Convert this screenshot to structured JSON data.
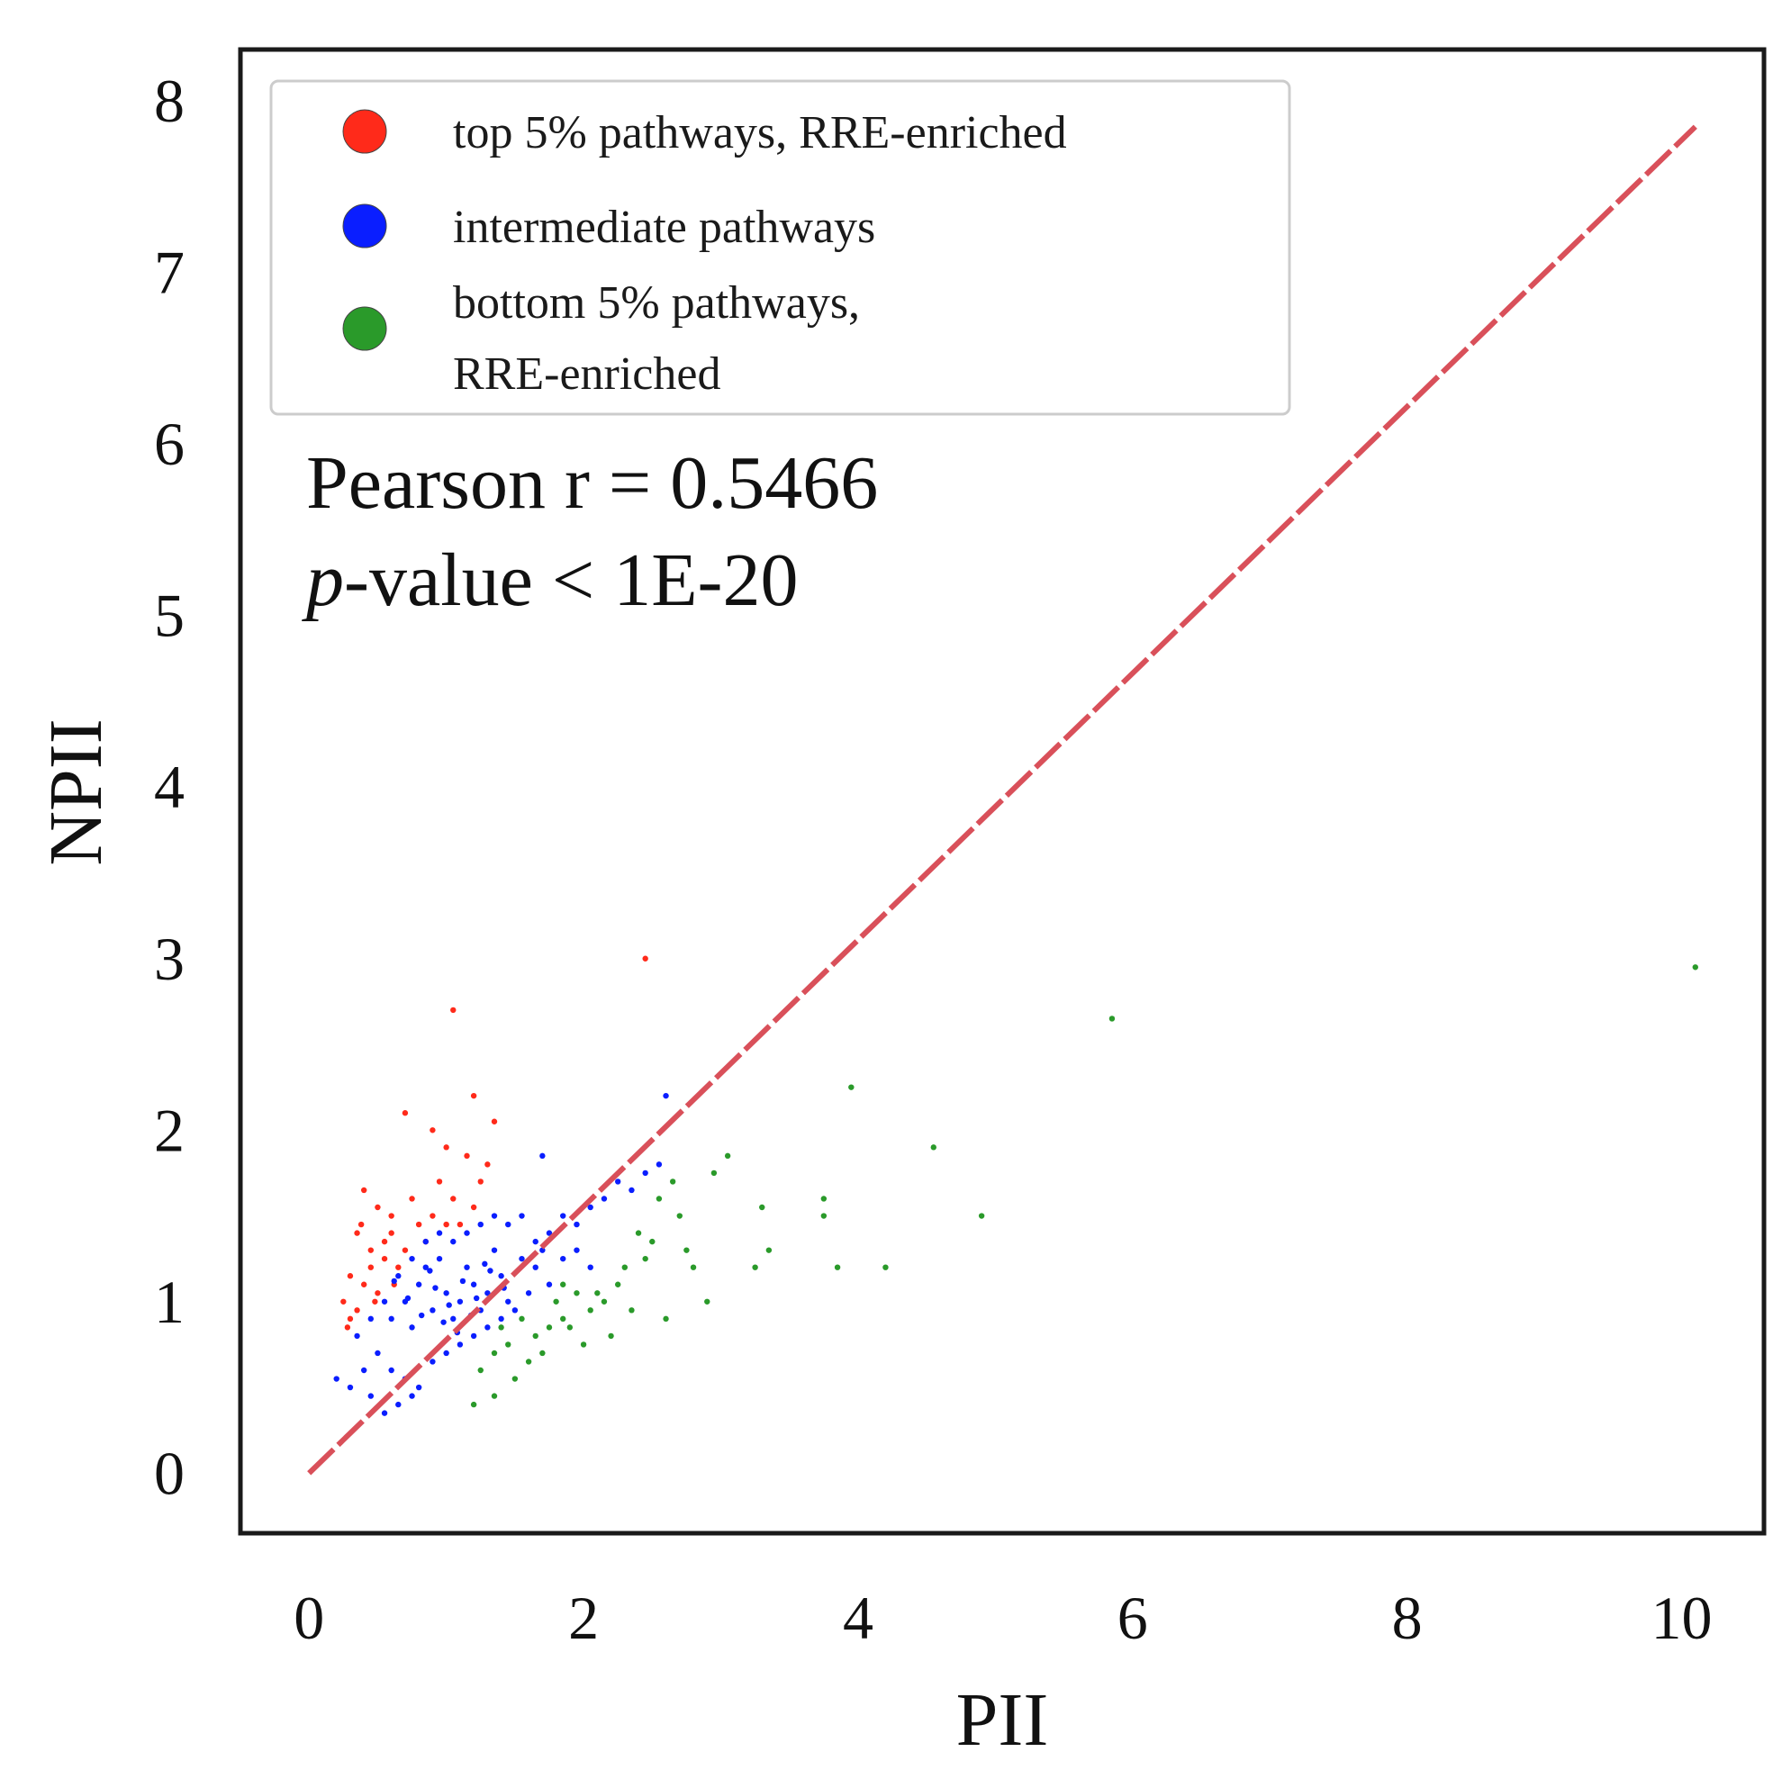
{
  "chart_data": {
    "type": "scatter",
    "title": "",
    "xlabel": "PII",
    "ylabel": "NPII",
    "xlim": [
      -0.5,
      10.6
    ],
    "ylim": [
      -0.35,
      8.3
    ],
    "xticks": [
      "0",
      "2",
      "4",
      "6",
      "8",
      "10"
    ],
    "yticks": [
      "0",
      "1",
      "2",
      "3",
      "4",
      "5",
      "6",
      "7",
      "8"
    ],
    "grid": false,
    "legend_position": "top-left",
    "legend": [
      {
        "label_lines": [
          "top 5% pathways, RRE-enriched"
        ],
        "color": "#ff2a1a"
      },
      {
        "label_lines": [
          "intermediate pathways"
        ],
        "color": "#0a1eff"
      },
      {
        "label_lines": [
          "bottom 5% pathways,",
          "RRE-enriched"
        ],
        "color": "#2a9a2a"
      }
    ],
    "annotation": {
      "pearson": "Pearson r = 0.5466",
      "pvalue_italic": "p",
      "pvalue_rest": "-value < 1E-20"
    },
    "reference_line": {
      "name": "identity line",
      "x": [
        0,
        10.1
      ],
      "y": [
        0,
        7.85
      ],
      "color": "#d9505a",
      "style": "dashed"
    },
    "series": [
      {
        "name": "top 5% pathways, RRE-enriched",
        "color": "#ff2a1a",
        "points": [
          [
            2.45,
            3.0
          ],
          [
            1.05,
            2.7
          ],
          [
            1.2,
            2.2
          ],
          [
            0.7,
            2.1
          ],
          [
            1.35,
            2.05
          ],
          [
            0.9,
            2.0
          ],
          [
            1.0,
            1.9
          ],
          [
            1.15,
            1.85
          ],
          [
            1.3,
            1.8
          ],
          [
            0.4,
            1.65
          ],
          [
            0.5,
            1.55
          ],
          [
            0.6,
            1.5
          ],
          [
            0.75,
            1.6
          ],
          [
            0.95,
            1.7
          ],
          [
            1.05,
            1.6
          ],
          [
            1.2,
            1.55
          ],
          [
            0.35,
            1.4
          ],
          [
            0.45,
            1.3
          ],
          [
            0.55,
            1.25
          ],
          [
            0.3,
            1.15
          ],
          [
            0.4,
            1.1
          ],
          [
            0.5,
            1.05
          ],
          [
            0.25,
            1.0
          ],
          [
            0.35,
            0.95
          ],
          [
            0.6,
            1.4
          ],
          [
            0.7,
            1.3
          ],
          [
            0.8,
            1.45
          ],
          [
            0.9,
            1.5
          ],
          [
            1.1,
            1.45
          ],
          [
            0.45,
            1.2
          ],
          [
            0.3,
            0.9
          ],
          [
            0.55,
            1.35
          ],
          [
            0.65,
            1.2
          ],
          [
            0.85,
            1.35
          ],
          [
            1.0,
            1.45
          ],
          [
            0.28,
            0.85
          ],
          [
            0.38,
            1.45
          ],
          [
            0.48,
            1.0
          ],
          [
            0.62,
            1.1
          ],
          [
            1.25,
            1.7
          ]
        ]
      },
      {
        "name": "intermediate pathways",
        "color": "#0a1eff",
        "points": [
          [
            0.6,
            0.9
          ],
          [
            0.7,
            1.0
          ],
          [
            0.8,
            1.1
          ],
          [
            0.9,
            0.95
          ],
          [
            1.0,
            1.05
          ],
          [
            1.1,
            1.0
          ],
          [
            1.2,
            1.1
          ],
          [
            1.3,
            1.05
          ],
          [
            1.4,
            1.15
          ],
          [
            0.75,
            0.85
          ],
          [
            0.85,
            1.2
          ],
          [
            0.95,
            1.25
          ],
          [
            1.05,
            0.9
          ],
          [
            1.15,
            1.2
          ],
          [
            1.25,
            0.95
          ],
          [
            1.35,
            1.3
          ],
          [
            1.45,
            1.0
          ],
          [
            1.55,
            1.25
          ],
          [
            1.65,
            1.35
          ],
          [
            1.75,
            1.4
          ],
          [
            1.85,
            1.5
          ],
          [
            1.95,
            1.45
          ],
          [
            2.05,
            1.55
          ],
          [
            2.15,
            1.6
          ],
          [
            2.25,
            1.7
          ],
          [
            2.35,
            1.65
          ],
          [
            2.45,
            1.75
          ],
          [
            2.55,
            1.8
          ],
          [
            1.7,
            1.85
          ],
          [
            2.6,
            2.2
          ],
          [
            0.5,
            0.7
          ],
          [
            0.4,
            0.6
          ],
          [
            0.3,
            0.5
          ],
          [
            0.2,
            0.55
          ],
          [
            0.35,
            0.8
          ],
          [
            0.45,
            0.9
          ],
          [
            0.55,
            1.0
          ],
          [
            0.65,
            1.15
          ],
          [
            0.75,
            1.25
          ],
          [
            0.85,
            1.35
          ],
          [
            0.95,
            1.4
          ],
          [
            1.05,
            1.35
          ],
          [
            1.15,
            1.4
          ],
          [
            1.25,
            1.45
          ],
          [
            1.35,
            1.5
          ],
          [
            1.45,
            1.45
          ],
          [
            1.55,
            1.5
          ],
          [
            1.65,
            1.2
          ],
          [
            1.75,
            1.1
          ],
          [
            1.85,
            1.25
          ],
          [
            1.95,
            1.3
          ],
          [
            2.05,
            1.2
          ],
          [
            0.6,
            0.6
          ],
          [
            0.7,
            0.55
          ],
          [
            0.8,
            0.5
          ],
          [
            0.9,
            0.65
          ],
          [
            1.0,
            0.7
          ],
          [
            1.1,
            0.75
          ],
          [
            1.2,
            0.8
          ],
          [
            1.3,
            0.85
          ],
          [
            1.4,
            0.9
          ],
          [
            1.5,
            0.95
          ],
          [
            0.65,
            0.4
          ],
          [
            0.75,
            0.45
          ],
          [
            0.55,
            0.35
          ],
          [
            0.45,
            0.45
          ],
          [
            1.6,
            1.05
          ],
          [
            1.7,
            1.3
          ],
          [
            0.92,
            1.08
          ],
          [
            1.02,
            0.98
          ],
          [
            1.12,
            1.12
          ],
          [
            1.22,
            1.02
          ],
          [
            0.82,
            0.92
          ],
          [
            0.72,
            1.02
          ],
          [
            1.32,
            1.18
          ],
          [
            1.42,
            1.08
          ],
          [
            0.62,
            1.12
          ],
          [
            1.08,
            0.82
          ],
          [
            0.98,
            0.88
          ],
          [
            1.18,
            0.92
          ],
          [
            0.88,
            1.18
          ],
          [
            1.28,
            1.22
          ]
        ]
      },
      {
        "name": "bottom 5% pathways, RRE-enriched",
        "color": "#2a9a2a",
        "points": [
          [
            10.1,
            2.95
          ],
          [
            5.85,
            2.65
          ],
          [
            3.95,
            2.25
          ],
          [
            4.55,
            1.9
          ],
          [
            3.05,
            1.85
          ],
          [
            2.95,
            1.75
          ],
          [
            3.3,
            1.55
          ],
          [
            3.75,
            1.6
          ],
          [
            3.75,
            1.5
          ],
          [
            4.9,
            1.5
          ],
          [
            3.35,
            1.3
          ],
          [
            3.25,
            1.2
          ],
          [
            3.85,
            1.2
          ],
          [
            4.2,
            1.2
          ],
          [
            2.65,
            1.7
          ],
          [
            2.7,
            1.5
          ],
          [
            2.75,
            1.3
          ],
          [
            2.8,
            1.2
          ],
          [
            2.5,
            1.35
          ],
          [
            2.45,
            1.25
          ],
          [
            2.6,
            0.9
          ],
          [
            2.9,
            1.0
          ],
          [
            2.25,
            1.1
          ],
          [
            2.15,
            1.0
          ],
          [
            2.05,
            0.95
          ],
          [
            1.95,
            1.05
          ],
          [
            1.85,
            1.1
          ],
          [
            1.75,
            0.85
          ],
          [
            1.65,
            0.8
          ],
          [
            1.55,
            0.9
          ],
          [
            1.45,
            0.75
          ],
          [
            1.35,
            0.7
          ],
          [
            1.25,
            0.6
          ],
          [
            1.35,
            0.45
          ],
          [
            1.2,
            0.4
          ],
          [
            1.5,
            0.55
          ],
          [
            1.7,
            0.7
          ],
          [
            1.9,
            0.85
          ],
          [
            2.2,
            0.8
          ],
          [
            2.35,
            0.95
          ],
          [
            1.8,
            1.0
          ],
          [
            2.1,
            1.05
          ],
          [
            2.3,
            1.2
          ],
          [
            1.6,
            0.65
          ],
          [
            1.4,
            0.85
          ],
          [
            2.0,
            0.75
          ],
          [
            2.4,
            1.4
          ],
          [
            2.55,
            1.6
          ],
          [
            1.85,
            0.9
          ]
        ]
      }
    ]
  }
}
